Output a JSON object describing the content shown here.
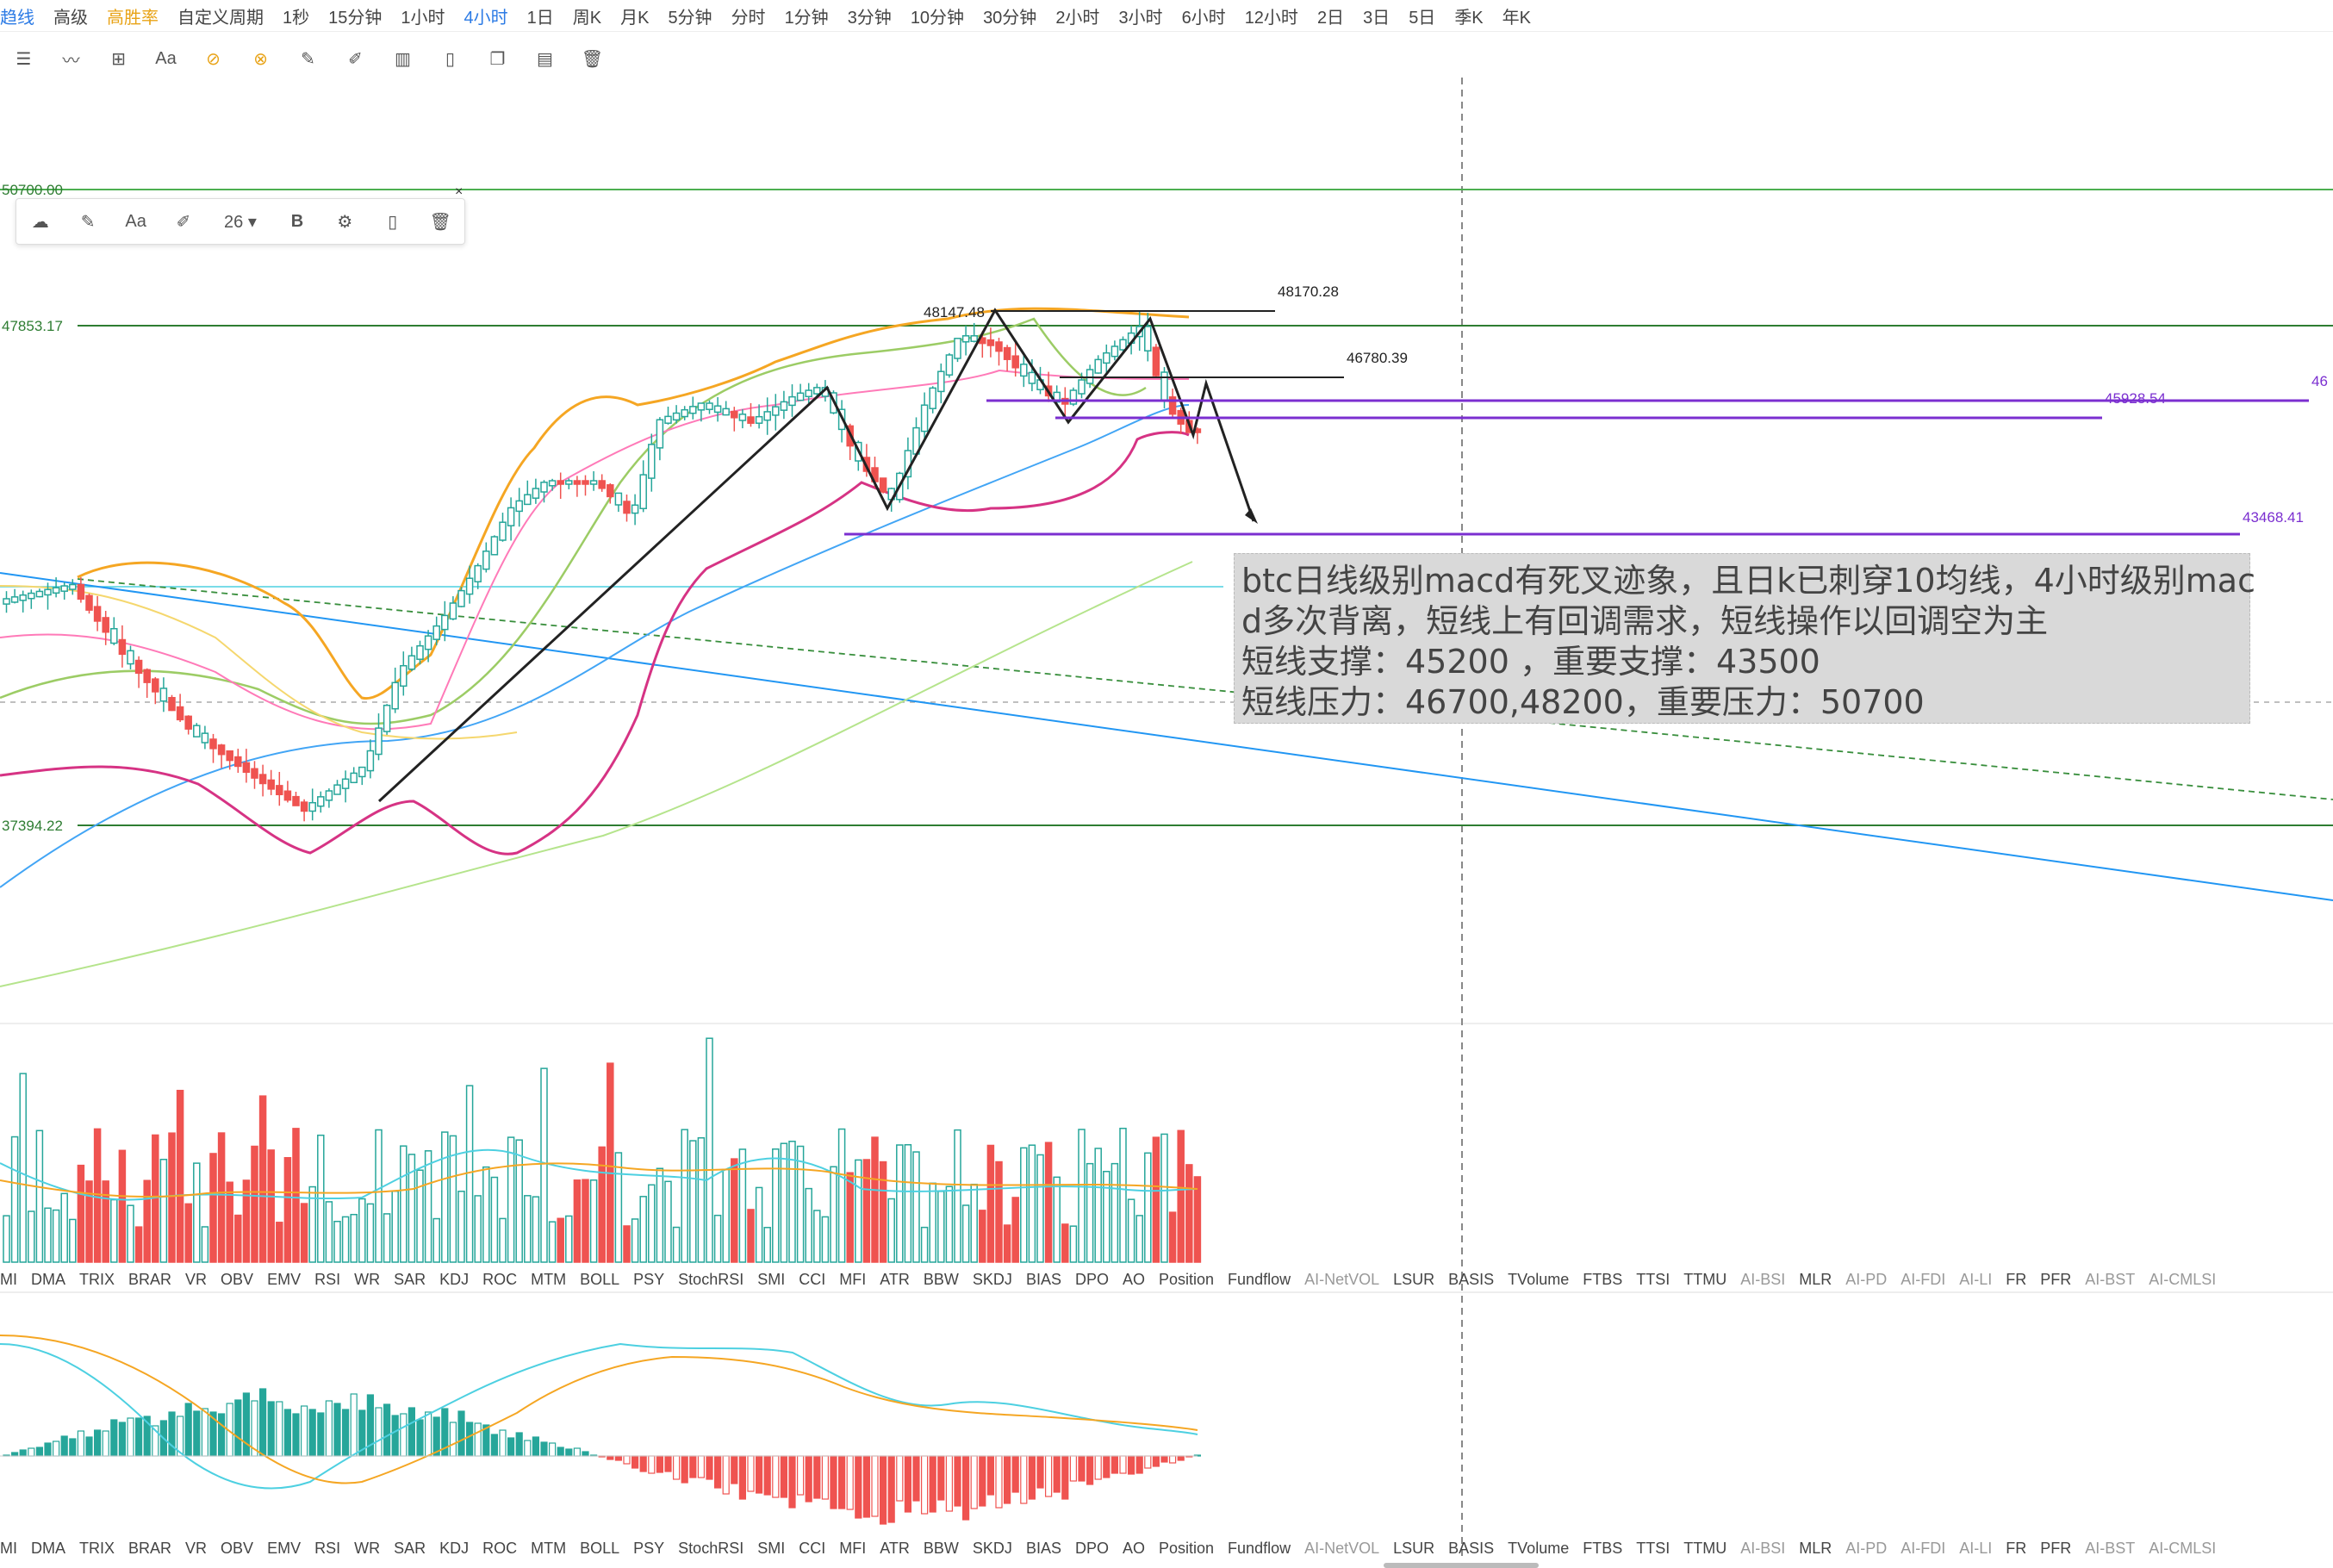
{
  "toolbar": {
    "items": [
      "趋线",
      "高级",
      "高胜率",
      "自定义周期",
      "1秒",
      "15分钟",
      "1小时",
      "4小时",
      "1日",
      "周K",
      "月K",
      "5分钟",
      "分时",
      "1分钟",
      "3分钟",
      "10分钟",
      "30分钟",
      "2小时",
      "3小时",
      "6小时",
      "12小时",
      "2日",
      "3日",
      "5日",
      "季K",
      "年K"
    ],
    "active_index": 7
  },
  "drawing_tools": [
    "menu-icon",
    "wave-icon",
    "plus-box-icon",
    "text-icon",
    "fib-icon",
    "fib2-icon",
    "pen-icon",
    "brush-icon",
    "candles-icon",
    "clipboard-icon",
    "copy-icon",
    "edit-icon",
    "trash-icon"
  ],
  "float_toolbar": {
    "font_size": "26",
    "bold_label": "B",
    "text_label": "Aa",
    "close": "×"
  },
  "price_labels": {
    "top_left": "50700.00",
    "h1": "47853.17",
    "h2": "37394.22",
    "peak1": "48147.48",
    "peak2": "48170.28",
    "mid": "46780.39",
    "purple1": "45928.54",
    "purple2": "43468.41",
    "right_cut": "46"
  },
  "annotation": {
    "line1": "btc日线级别macd有死叉迹象，且日k已刺穿10均线，4小时级别mac",
    "line2": "d多次背离，短线上有回调需求，短线操作以回调空为主",
    "line3": "短线支撑：45200 ，重要支撑：43500",
    "line4": "短线压力：46700,48200，重要压力：50700"
  },
  "indicators": [
    "MI",
    "DMA",
    "TRIX",
    "BRAR",
    "VR",
    "OBV",
    "EMV",
    "RSI",
    "WR",
    "SAR",
    "KDJ",
    "ROC",
    "MTM",
    "BOLL",
    "PSY",
    "StochRSI",
    "SMI",
    "CCI",
    "MFI",
    "ATR",
    "BBW",
    "SKDJ",
    "BIAS",
    "DPO",
    "AO",
    "Position",
    "Fundflow",
    "AI-NetVOL",
    "LSUR",
    "BASIS",
    "TVolume",
    "FTBS",
    "TTSI",
    "TTMU",
    "AI-BSI",
    "MLR",
    "AI-PD",
    "AI-FDI",
    "AI-LI",
    "FR",
    "PFR",
    "AI-BST",
    "AI-CMLSI"
  ],
  "dim_from": 27,
  "colors": {
    "up": "#26a69a",
    "down": "#ef5350",
    "green_line": "#4caf50",
    "purple": "#7b2fd0",
    "orange": "#f5a623",
    "magenta": "#d63384",
    "blue": "#2196f3"
  }
}
